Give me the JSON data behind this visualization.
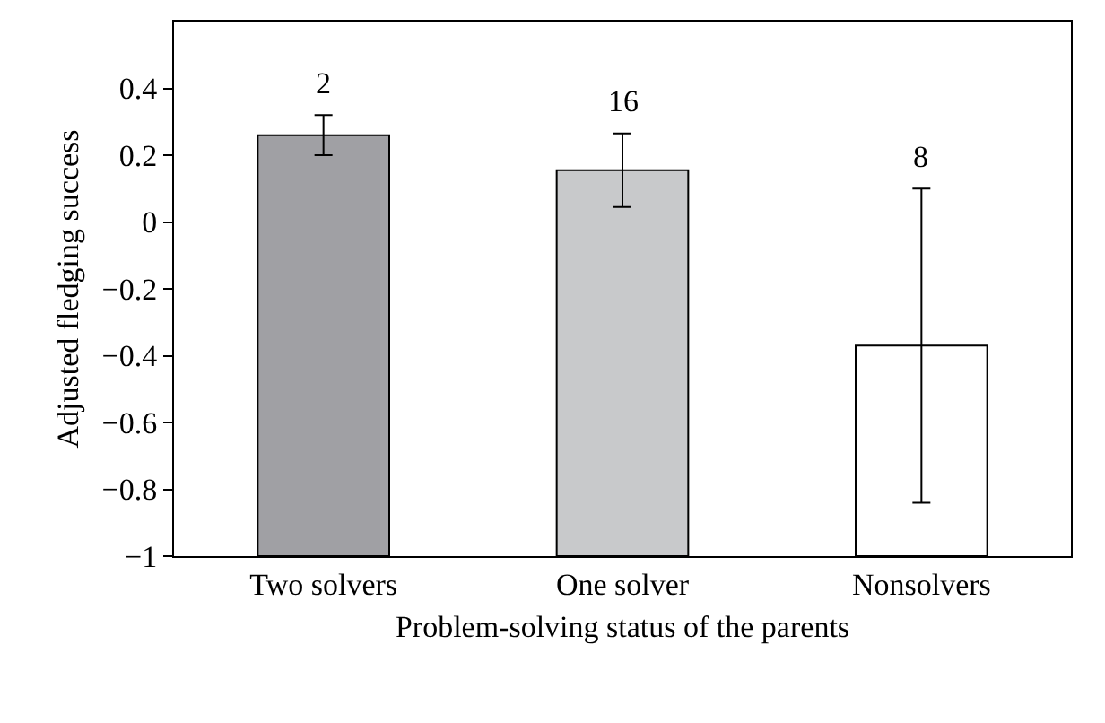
{
  "chart_data": {
    "type": "bar",
    "xlabel": "Problem-solving status of the parents",
    "ylabel": "Adjusted fledging success",
    "categories": [
      "Two solvers",
      "One solver",
      "Nonsolvers"
    ],
    "base": [
      -1,
      -1,
      -1
    ],
    "values": [
      1.26,
      1.155,
      0.63
    ],
    "colors": [
      "#a0a0a4",
      "#c8c9cb",
      "#ffffff"
    ],
    "errors": [
      0.06,
      0.11,
      0.47
    ],
    "ylim": [
      -1,
      0.6
    ],
    "yticks": [
      {
        "value": -1,
        "label": "−1"
      },
      {
        "value": -0.8,
        "label": "−0.8"
      },
      {
        "value": -0.6,
        "label": "−0.6"
      },
      {
        "value": -0.4,
        "label": "−0.4"
      },
      {
        "value": -0.2,
        "label": "−0.2"
      },
      0,
      0.2,
      0.4
    ],
    "annotations": [
      {
        "text": "2",
        "x": "Two solvers",
        "y": 0.32
      },
      {
        "text": "16",
        "x": "One solver",
        "y": 0.265
      },
      {
        "text": "8",
        "x": "Nonsolvers",
        "y": 0.1
      }
    ],
    "grid": false
  }
}
